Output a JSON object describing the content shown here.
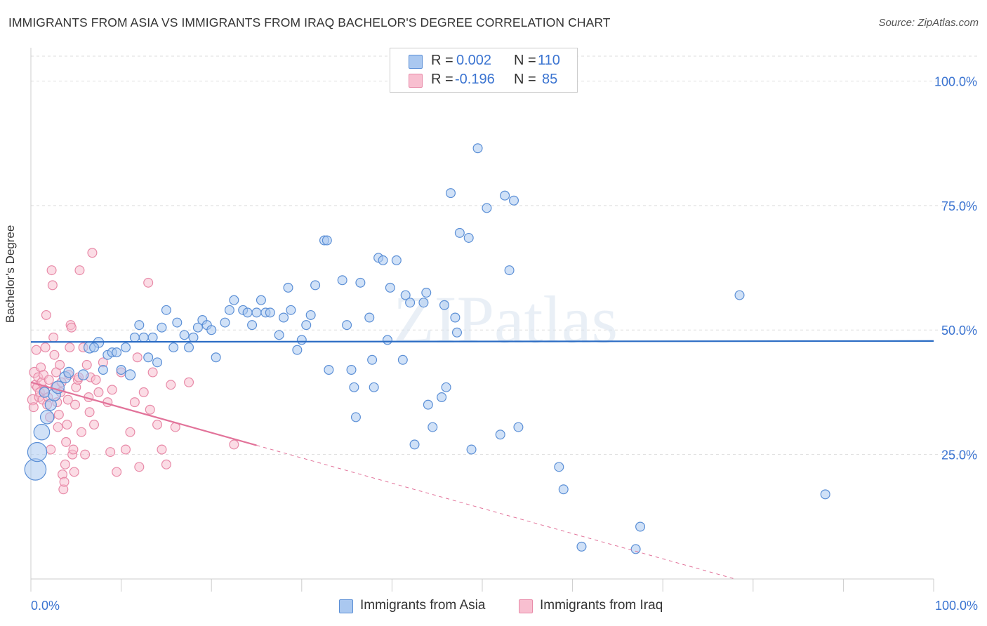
{
  "title": "IMMIGRANTS FROM ASIA VS IMMIGRANTS FROM IRAQ BACHELOR'S DEGREE CORRELATION CHART",
  "source": "Source: ZipAtlas.com",
  "watermark": "ZIPatlas",
  "legend": {
    "r_label": "R =",
    "n_label": "N =",
    "asia": {
      "r": "0.002",
      "n": "110"
    },
    "iraq": {
      "r": "-0.196",
      "n": "85"
    }
  },
  "colors": {
    "asia_fill": "#aac8f0",
    "asia_stroke": "#5b8fd6",
    "asia_line": "#2b6cc4",
    "iraq_fill": "#f8bfd0",
    "iraq_stroke": "#e88aa8",
    "iraq_line": "#e2739a",
    "tick_text": "#3b74d1",
    "grid": "#dddddd"
  },
  "chart_data": {
    "type": "scatter",
    "title": "IMMIGRANTS FROM ASIA VS IMMIGRANTS FROM IRAQ BACHELOR'S DEGREE CORRELATION CHART",
    "xlabel": "",
    "ylabel": "Bachelor's Degree",
    "xlim": [
      0,
      100
    ],
    "ylim": [
      0,
      105
    ],
    "x_tick_labels": [
      "0.0%",
      "100.0%"
    ],
    "y_ticks": [
      25,
      50,
      75,
      100
    ],
    "y_tick_labels": [
      "25.0%",
      "50.0%",
      "75.0%",
      "100.0%"
    ],
    "legend_position": "top-center",
    "series": [
      {
        "name": "Immigrants from Asia",
        "r": 0.002,
        "n": 110,
        "trend": {
          "x0": 0,
          "y0": 47.6,
          "x1": 100,
          "y1": 47.8
        },
        "points": [
          [
            0.5,
            22.0,
            1.9
          ],
          [
            0.7,
            25.5,
            1.7
          ],
          [
            1.2,
            29.5,
            1.4
          ],
          [
            1.8,
            32.5,
            1.2
          ],
          [
            2.2,
            35.0,
            1.0
          ],
          [
            2.6,
            37.0,
            1.1
          ],
          [
            3.0,
            38.5,
            1.1
          ],
          [
            3.8,
            40.5,
            1.0
          ],
          [
            4.2,
            41.5,
            0.9
          ],
          [
            5.8,
            41.0,
            0.9
          ],
          [
            6.5,
            46.5,
            1.0
          ],
          [
            7.5,
            47.5,
            0.9
          ],
          [
            7.0,
            46.5,
            0.8
          ],
          [
            8.0,
            42.0,
            0.8
          ],
          [
            8.5,
            45.0,
            0.8
          ],
          [
            9.0,
            45.5,
            0.8
          ],
          [
            9.5,
            45.5,
            0.8
          ],
          [
            10.0,
            42.0,
            0.8
          ],
          [
            10.5,
            46.5,
            0.8
          ],
          [
            11.0,
            41.0,
            0.9
          ],
          [
            11.5,
            48.5,
            0.8
          ],
          [
            12.0,
            51.0,
            0.8
          ],
          [
            12.5,
            48.5,
            0.8
          ],
          [
            13.0,
            44.5,
            0.8
          ],
          [
            13.5,
            48.5,
            0.8
          ],
          [
            14.0,
            43.5,
            0.8
          ],
          [
            14.5,
            50.5,
            0.8
          ],
          [
            15.0,
            54.0,
            0.8
          ],
          [
            15.8,
            46.5,
            0.8
          ],
          [
            16.2,
            51.5,
            0.8
          ],
          [
            17.0,
            49.0,
            0.8
          ],
          [
            17.5,
            46.5,
            0.8
          ],
          [
            18.0,
            48.5,
            0.8
          ],
          [
            18.5,
            50.5,
            0.8
          ],
          [
            19.0,
            52.0,
            0.8
          ],
          [
            19.5,
            51.0,
            0.8
          ],
          [
            20.0,
            50.0,
            0.8
          ],
          [
            20.5,
            44.5,
            0.8
          ],
          [
            21.5,
            51.5,
            0.8
          ],
          [
            22.0,
            54.0,
            0.8
          ],
          [
            22.5,
            56.0,
            0.8
          ],
          [
            23.5,
            54.0,
            0.8
          ],
          [
            24.0,
            53.5,
            0.8
          ],
          [
            24.5,
            51.0,
            0.8
          ],
          [
            25.0,
            53.5,
            0.8
          ],
          [
            25.5,
            56.0,
            0.8
          ],
          [
            26.0,
            53.5,
            0.8
          ],
          [
            26.5,
            53.5,
            0.8
          ],
          [
            27.5,
            49.0,
            0.8
          ],
          [
            28.0,
            52.5,
            0.8
          ],
          [
            28.5,
            58.5,
            0.8
          ],
          [
            28.8,
            54.0,
            0.8
          ],
          [
            29.5,
            46.0,
            0.8
          ],
          [
            30.0,
            48.0,
            0.8
          ],
          [
            30.5,
            51.0,
            0.8
          ],
          [
            31.0,
            53.0,
            0.8
          ],
          [
            31.5,
            59.0,
            0.8
          ],
          [
            32.5,
            68.0,
            0.8
          ],
          [
            32.8,
            68.0,
            0.8
          ],
          [
            33.0,
            42.0,
            0.8
          ],
          [
            34.5,
            60.0,
            0.8
          ],
          [
            35.0,
            51.0,
            0.8
          ],
          [
            35.5,
            42.0,
            0.8
          ],
          [
            35.8,
            38.5,
            0.8
          ],
          [
            36.5,
            59.5,
            0.8
          ],
          [
            36.0,
            32.5,
            0.8
          ],
          [
            37.5,
            52.5,
            0.8
          ],
          [
            37.8,
            44.0,
            0.8
          ],
          [
            38.0,
            38.5,
            0.8
          ],
          [
            38.5,
            64.5,
            0.8
          ],
          [
            39.0,
            64.0,
            0.8
          ],
          [
            39.5,
            48.0,
            0.8
          ],
          [
            39.8,
            58.5,
            0.8
          ],
          [
            40.5,
            64.0,
            0.8
          ],
          [
            41.2,
            44.0,
            0.8
          ],
          [
            41.5,
            57.0,
            0.8
          ],
          [
            42.0,
            55.5,
            0.8
          ],
          [
            42.5,
            27.0,
            0.8
          ],
          [
            43.5,
            55.5,
            0.8
          ],
          [
            43.8,
            57.5,
            0.8
          ],
          [
            44.0,
            35.0,
            0.8
          ],
          [
            44.5,
            30.5,
            0.8
          ],
          [
            45.5,
            36.5,
            0.8
          ],
          [
            45.8,
            55.0,
            0.8
          ],
          [
            46.0,
            38.5,
            0.8
          ],
          [
            46.5,
            77.5,
            0.8
          ],
          [
            47.0,
            52.5,
            0.8
          ],
          [
            47.2,
            49.5,
            0.8
          ],
          [
            47.5,
            69.5,
            0.8
          ],
          [
            48.5,
            68.5,
            0.8
          ],
          [
            48.8,
            26.0,
            0.8
          ],
          [
            49.5,
            86.5,
            0.8
          ],
          [
            50.5,
            74.5,
            0.8
          ],
          [
            52.0,
            29.0,
            0.8
          ],
          [
            52.5,
            77.0,
            0.8
          ],
          [
            53.0,
            62.0,
            0.8
          ],
          [
            53.5,
            76.0,
            0.8
          ],
          [
            54.0,
            30.5,
            0.8
          ],
          [
            58.5,
            22.5,
            0.8
          ],
          [
            59.0,
            18.0,
            0.8
          ],
          [
            61.0,
            6.5,
            0.8
          ],
          [
            67.5,
            10.5,
            0.8
          ],
          [
            67.0,
            6.0,
            0.8
          ],
          [
            78.5,
            57.0,
            0.8
          ],
          [
            88.0,
            17.0,
            0.8
          ],
          [
            1.5,
            37.5,
            0.9
          ]
        ]
      },
      {
        "name": "Immigrants from Iraq",
        "r": -0.196,
        "n": 85,
        "trend": {
          "x0": 0,
          "y0": 39.5,
          "x1": 78,
          "y1": 0,
          "solid_until_x": 25
        },
        "points": [
          [
            0.2,
            36.0,
            0.9
          ],
          [
            0.4,
            41.5,
            0.9
          ],
          [
            0.5,
            39.0,
            0.8
          ],
          [
            0.6,
            46.0,
            0.8
          ],
          [
            0.7,
            38.5,
            0.8
          ],
          [
            0.8,
            40.5,
            0.8
          ],
          [
            0.9,
            36.5,
            0.8
          ],
          [
            1.0,
            37.5,
            0.8
          ],
          [
            1.1,
            42.5,
            0.8
          ],
          [
            1.2,
            39.5,
            0.8
          ],
          [
            1.3,
            36.0,
            0.8
          ],
          [
            1.4,
            41.0,
            0.8
          ],
          [
            1.5,
            38.0,
            0.8
          ],
          [
            1.6,
            46.5,
            0.8
          ],
          [
            1.7,
            53.0,
            0.8
          ],
          [
            1.8,
            35.0,
            0.8
          ],
          [
            1.9,
            36.5,
            0.8
          ],
          [
            2.0,
            40.0,
            0.8
          ],
          [
            2.1,
            32.5,
            0.8
          ],
          [
            2.2,
            26.0,
            0.8
          ],
          [
            2.3,
            62.0,
            0.8
          ],
          [
            2.4,
            59.0,
            0.8
          ],
          [
            2.5,
            48.5,
            0.8
          ],
          [
            2.6,
            45.0,
            0.8
          ],
          [
            2.7,
            38.5,
            0.8
          ],
          [
            2.8,
            41.5,
            0.8
          ],
          [
            2.9,
            35.5,
            0.8
          ],
          [
            3.0,
            30.5,
            0.8
          ],
          [
            3.1,
            33.0,
            0.8
          ],
          [
            3.2,
            43.0,
            0.8
          ],
          [
            3.3,
            37.5,
            0.8
          ],
          [
            3.4,
            39.5,
            0.8
          ],
          [
            3.5,
            21.0,
            0.8
          ],
          [
            3.6,
            18.0,
            0.8
          ],
          [
            3.7,
            19.5,
            0.8
          ],
          [
            3.8,
            23.0,
            0.8
          ],
          [
            3.9,
            27.5,
            0.8
          ],
          [
            4.0,
            31.0,
            0.8
          ],
          [
            4.1,
            36.0,
            0.8
          ],
          [
            4.2,
            41.0,
            0.8
          ],
          [
            4.3,
            46.5,
            0.8
          ],
          [
            4.4,
            51.0,
            0.8
          ],
          [
            4.5,
            50.5,
            0.8
          ],
          [
            4.6,
            25.0,
            0.8
          ],
          [
            4.7,
            26.0,
            0.8
          ],
          [
            4.8,
            21.5,
            0.8
          ],
          [
            4.9,
            35.0,
            0.8
          ],
          [
            5.0,
            38.5,
            0.8
          ],
          [
            5.2,
            40.0,
            0.8
          ],
          [
            5.4,
            62.0,
            0.8
          ],
          [
            5.6,
            29.5,
            0.8
          ],
          [
            5.8,
            46.5,
            0.8
          ],
          [
            6.0,
            25.0,
            0.8
          ],
          [
            6.2,
            43.0,
            0.8
          ],
          [
            6.4,
            36.5,
            0.8
          ],
          [
            6.6,
            40.5,
            0.8
          ],
          [
            6.8,
            65.5,
            0.8
          ],
          [
            7.0,
            31.0,
            0.8
          ],
          [
            7.5,
            37.5,
            0.8
          ],
          [
            8.0,
            43.5,
            0.8
          ],
          [
            8.5,
            35.5,
            0.8
          ],
          [
            9.0,
            38.0,
            0.8
          ],
          [
            9.5,
            21.5,
            0.8
          ],
          [
            10.0,
            41.5,
            0.8
          ],
          [
            10.5,
            26.0,
            0.8
          ],
          [
            11.0,
            29.5,
            0.8
          ],
          [
            11.5,
            35.5,
            0.8
          ],
          [
            12.0,
            22.5,
            0.8
          ],
          [
            12.5,
            37.5,
            0.8
          ],
          [
            13.0,
            59.5,
            0.8
          ],
          [
            13.2,
            34.0,
            0.8
          ],
          [
            13.5,
            41.5,
            0.8
          ],
          [
            14.0,
            31.0,
            0.8
          ],
          [
            14.5,
            26.0,
            0.8
          ],
          [
            15.0,
            23.0,
            0.8
          ],
          [
            15.5,
            39.0,
            0.8
          ],
          [
            16.0,
            30.5,
            0.8
          ],
          [
            17.5,
            39.5,
            0.8
          ],
          [
            7.2,
            40.0,
            0.8
          ],
          [
            8.8,
            25.5,
            0.8
          ],
          [
            6.5,
            33.5,
            0.8
          ],
          [
            5.3,
            40.5,
            0.8
          ],
          [
            11.8,
            44.5,
            0.8
          ],
          [
            22.5,
            27.0,
            0.8
          ],
          [
            0.3,
            34.5,
            0.8
          ]
        ]
      }
    ]
  },
  "bottom_legend": {
    "asia_label": "Immigrants from Asia",
    "iraq_label": "Immigrants from Iraq"
  }
}
